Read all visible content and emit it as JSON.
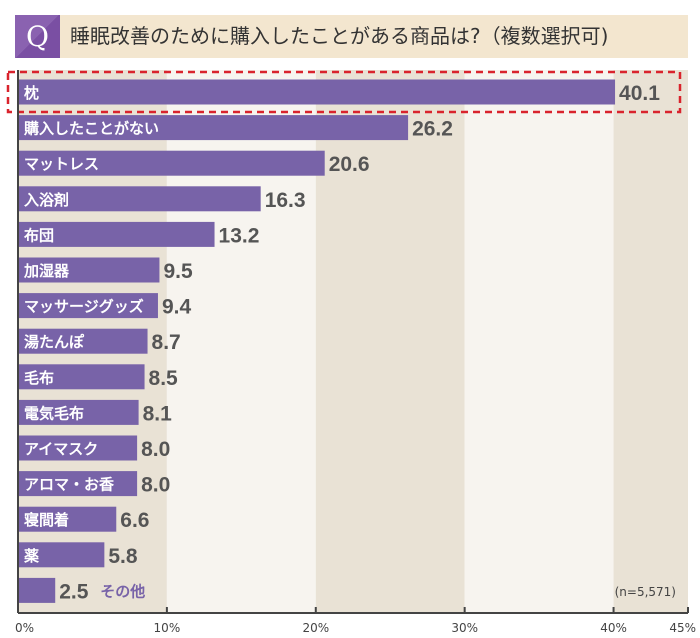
{
  "header": {
    "q_mark": "Q",
    "title": "睡眠改善のために購入したことがある商品は?（複数選択可)"
  },
  "chart_data": {
    "type": "bar",
    "orientation": "horizontal",
    "title": "睡眠改善のために購入したことがある商品は?（複数選択可)",
    "categories": [
      "枕",
      "購入したことがない",
      "マットレス",
      "入浴剤",
      "布団",
      "加湿器",
      "マッサージグッズ",
      "湯たんぽ",
      "毛布",
      "電気毛布",
      "アイマスク",
      "アロマ・お香",
      "寝間着",
      "薬",
      "その他"
    ],
    "values": [
      40.1,
      26.2,
      20.6,
      16.3,
      13.2,
      9.5,
      9.4,
      8.7,
      8.5,
      8.1,
      8.0,
      8.0,
      6.6,
      5.8,
      2.5
    ],
    "value_labels": [
      "40.1",
      "26.2",
      "20.6",
      "16.3",
      "13.2",
      "9.5",
      "9.4",
      "8.7",
      "8.5",
      "8.1",
      "8.0",
      "8.0",
      "6.6",
      "5.8",
      "2.5"
    ],
    "xlim": [
      0,
      45
    ],
    "x_ticks": [
      "0%",
      "10%",
      "20%",
      "30%",
      "40%",
      "45%"
    ],
    "x_tick_values": [
      0,
      10,
      20,
      30,
      40,
      45
    ],
    "note": "(n=5,571)",
    "highlighted_category": "枕",
    "colors": {
      "bar": "#7863a8",
      "band_dark": "#e9e2d5",
      "band_light": "#f7f4ef",
      "highlight": "#d9232d",
      "value_text": "#555555"
    },
    "grid": "alternating bands"
  }
}
